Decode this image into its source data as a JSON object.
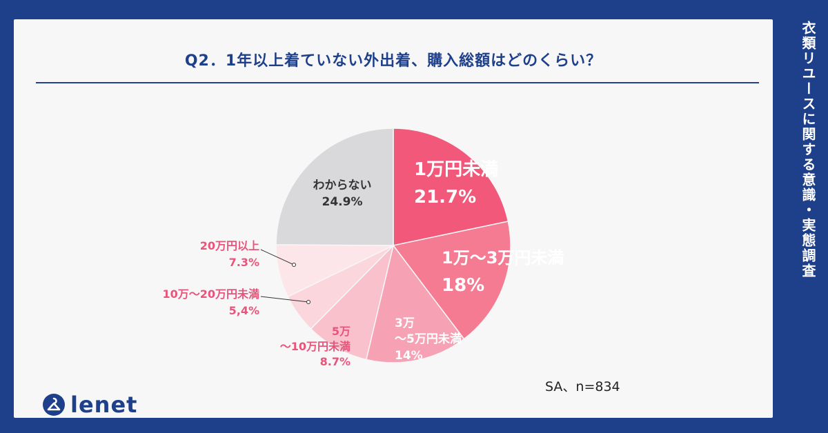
{
  "title": "Q2．1年以上着ていない外出着、購入総額はどのくらい？",
  "side_title": "衣類リユースに関する意識・実態調査",
  "note": "SA、n=834",
  "logo": {
    "text": "lenet"
  },
  "colors": {
    "brand": "#1e3f8a",
    "accent": "#f2587a"
  },
  "chart_data": {
    "type": "pie",
    "title": "Q2．1年以上着ていない外出着、購入総額はどのくらい？",
    "slices": [
      {
        "label": "1万円未満",
        "value": 21.7,
        "display": "21.7%",
        "color": "#f2587a"
      },
      {
        "label": "1万〜3万円未満",
        "value": 18.0,
        "display": "18%",
        "color": "#f57b93"
      },
      {
        "label": "3万\n〜5万円未満",
        "value": 14.0,
        "display": "14%",
        "color": "#f6a2b4"
      },
      {
        "label": "5万\n〜10万円未満",
        "value": 8.7,
        "display": "8.7%",
        "color": "#f9c1cc"
      },
      {
        "label": "10万〜20万円未満",
        "value": 5.4,
        "display": "5,4%",
        "color": "#fbd6dd"
      },
      {
        "label": "20万円以上",
        "value": 7.3,
        "display": "7.3%",
        "color": "#fde6ea"
      },
      {
        "label": "わからない",
        "value": 24.9,
        "display": "24.9%",
        "color": "#d9d9dc"
      }
    ]
  }
}
